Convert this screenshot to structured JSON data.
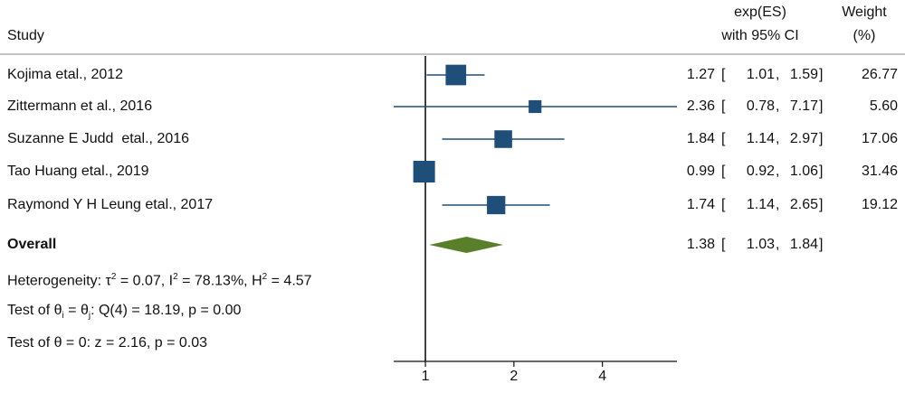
{
  "header": {
    "study": "Study",
    "es_line1": "exp(ES)",
    "es_line2": "with 95% CI",
    "weight_line1": "Weight",
    "weight_line2": "(%)"
  },
  "chart_data": {
    "type": "forest",
    "x_scale": "log",
    "xlim": [
      0.78,
      7.17
    ],
    "xticks": [
      1,
      2,
      4
    ],
    "xtick_labels": [
      "1",
      "2",
      "4"
    ],
    "null_line": 1,
    "studies": [
      {
        "name": "Kojima etal., 2012",
        "es": 1.27,
        "lo": 1.01,
        "hi": 1.59,
        "weight": 26.77,
        "es_label": "1.27",
        "lo_label": "1.01",
        "hi_label": "1.59",
        "weight_label": "26.77"
      },
      {
        "name": "Zittermann et al., 2016",
        "es": 2.36,
        "lo": 0.78,
        "hi": 7.17,
        "weight": 5.6,
        "es_label": "2.36",
        "lo_label": "0.78",
        "hi_label": "7.17",
        "weight_label": "5.60"
      },
      {
        "name": "Suzanne E Judd  etal., 2016",
        "es": 1.84,
        "lo": 1.14,
        "hi": 2.97,
        "weight": 17.06,
        "es_label": "1.84",
        "lo_label": "1.14",
        "hi_label": "2.97",
        "weight_label": "17.06"
      },
      {
        "name": "Tao Huang etal., 2019",
        "es": 0.99,
        "lo": 0.92,
        "hi": 1.06,
        "weight": 31.46,
        "es_label": "0.99",
        "lo_label": "0.92",
        "hi_label": "1.06",
        "weight_label": "31.46"
      },
      {
        "name": "Raymond Y H Leung etal., 2017",
        "es": 1.74,
        "lo": 1.14,
        "hi": 2.65,
        "weight": 19.12,
        "es_label": "1.74",
        "lo_label": "1.14",
        "hi_label": "2.65",
        "weight_label": "19.12"
      }
    ],
    "overall": {
      "label": "Overall",
      "es": 1.38,
      "lo": 1.03,
      "hi": 1.84,
      "es_label": "1.38",
      "lo_label": "1.03",
      "hi_label": "1.84"
    },
    "heterogeneity": {
      "prefix": "Heterogeneity: τ",
      "tau_sq": " = 0.07, I",
      "i_sq": " = 78.13%, H",
      "h_sq": " = 4.57",
      "sup": "2"
    },
    "test_equal": {
      "a": "Test of θ",
      "sub_i": "i",
      "b": " = θ",
      "sub_j": "j",
      "c": ": Q(4) = 18.19, p = 0.00"
    },
    "test_zero": "Test of θ = 0: z = 2.16, p = 0.03",
    "colors": {
      "marker": "#1f4e79",
      "diamond": "#5a7f2b",
      "axis": "#111111"
    }
  }
}
